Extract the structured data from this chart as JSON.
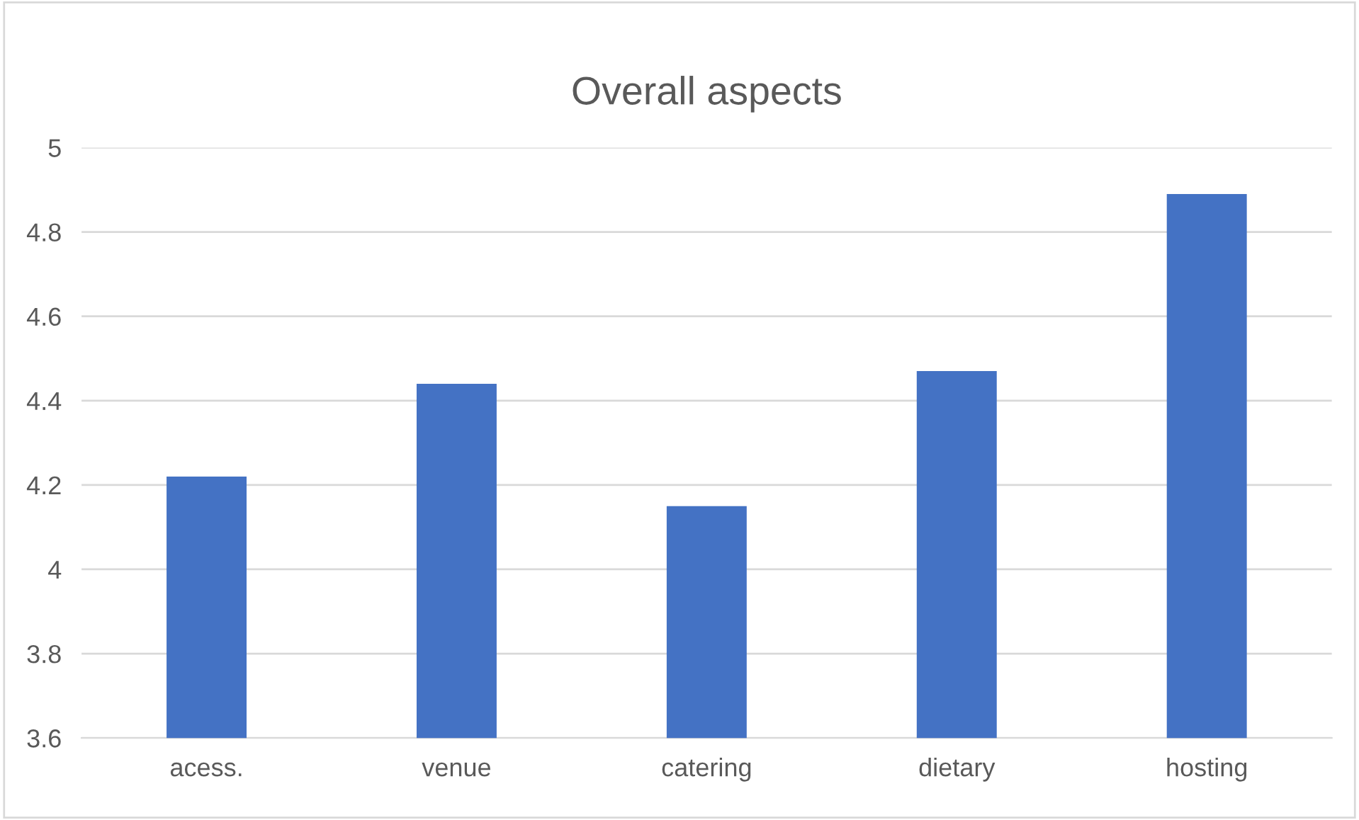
{
  "chart_data": {
    "type": "bar",
    "title": "Overall aspects",
    "categories": [
      "acess.",
      "venue",
      "catering",
      "dietary",
      "hosting"
    ],
    "values": [
      4.22,
      4.44,
      4.15,
      4.47,
      4.89
    ],
    "color": "#4472c4",
    "ylim": [
      3.6,
      5
    ],
    "yticks": [
      3.6,
      3.8,
      4,
      4.2,
      4.4,
      4.6,
      4.8,
      5
    ],
    "grid": "y",
    "legend": false
  }
}
